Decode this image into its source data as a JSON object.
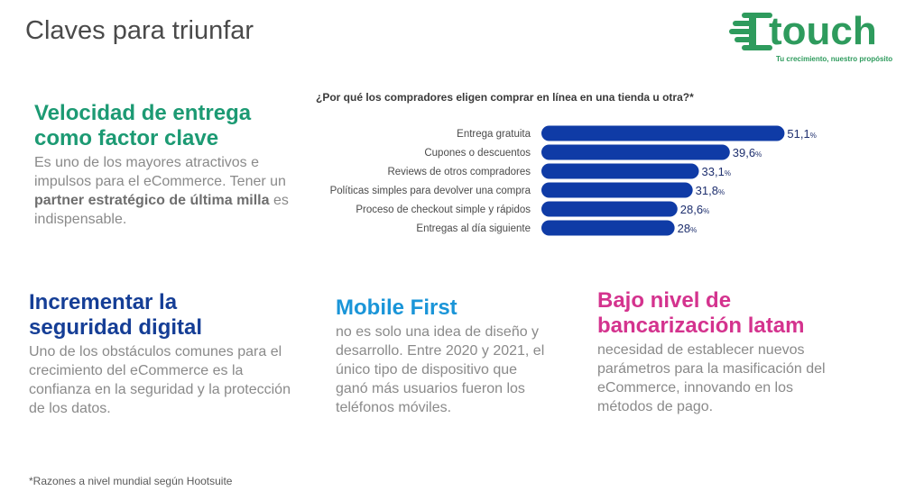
{
  "page": {
    "title": "Claves para triunfar"
  },
  "logo": {
    "word": "touch",
    "tagline": "Tu crecimiento, nuestro propósito",
    "color": "#2e9b5d"
  },
  "blocks": {
    "entrega": {
      "heading_l1": "Velocidad de entrega",
      "heading_l2": "como factor clave",
      "body_1": "Es uno de los mayores atractivos e impulsos para el eCommerce. Tener un ",
      "body_bold_1": "partner estratégico de última milla",
      "body_2": " es indispensable."
    },
    "seguridad": {
      "heading_l1": "Incrementar la",
      "heading_l2": "seguridad digital",
      "body": "Uno de los obstáculos comunes para el crecimiento del eCommerce es la confianza en la seguridad y la protección de los datos."
    },
    "mobile": {
      "heading": "Mobile First",
      "body_l1": "no es solo una idea de diseño y desarrollo. Entre 2020 y 2021, el único tipo de dispositivo que",
      "body_l2": "ganó más usuarios fueron los teléfonos móviles."
    },
    "bancarizacion": {
      "heading_l1": "Bajo nivel de",
      "heading_l2": "bancarización latam",
      "body": "necesidad de establecer nuevos parámetros para la masificación del eCommerce, innovando en los métodos de pago."
    }
  },
  "chart_data": {
    "type": "bar",
    "orientation": "horizontal",
    "title": "¿Por qué los compradores eligen comprar en línea en una tienda u otra?*",
    "categories": [
      "Entrega gratuita",
      "Cupones o descuentos",
      "Reviews de otros compradores",
      "Políticas simples para devolver una compra",
      "Proceso de checkout simple y rápidos",
      "Entregas al día siguiente"
    ],
    "values": [
      51.1,
      39.6,
      33.1,
      31.8,
      28.6,
      28
    ],
    "value_labels": [
      "51,1",
      "39,6",
      "33,1",
      "31,8",
      "28,6",
      "28"
    ],
    "unit": "%",
    "xlim": [
      0,
      55
    ],
    "bar_color": "#0f3ba6",
    "grid": false
  },
  "footnote": "*Razones a nivel mundial según Hootsuite"
}
